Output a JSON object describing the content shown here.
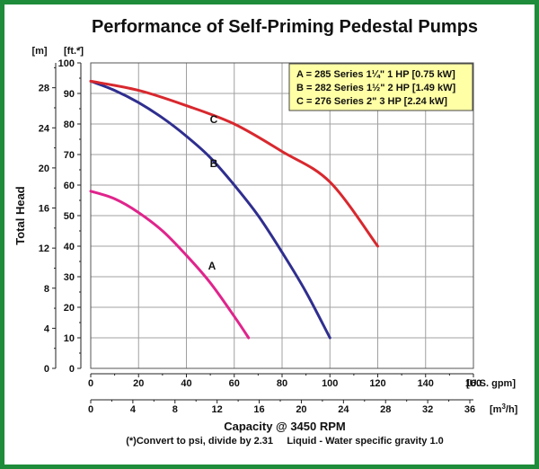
{
  "chart_data": {
    "type": "line",
    "title": "Performance of Self-Priming Pedestal Pumps",
    "xlabel": "Capacity @ 3450 RPM",
    "ylabel": "Total Head",
    "x_unit_gpm": "[U.S. gpm]",
    "x_unit_m3h": "[m3/h]",
    "y_unit_ft": "[ft.*]",
    "y_unit_m": "[m]",
    "footnote": "(*)Convert to psi, divide by 2.31     Liquid - Water specific gravity 1.0",
    "xlim": [
      0,
      160
    ],
    "ylim": [
      0,
      100
    ],
    "grid": true,
    "legend_position": "top-right",
    "x_ticks_gpm": [
      0,
      20,
      40,
      60,
      80,
      100,
      120,
      140,
      160
    ],
    "x_ticks_m3h": [
      0,
      4,
      8,
      12,
      16,
      20,
      24,
      28,
      32,
      36
    ],
    "y_ticks_ft": [
      0,
      10,
      20,
      30,
      40,
      50,
      60,
      70,
      80,
      90,
      100
    ],
    "y_ticks_m": [
      0,
      4,
      8,
      12,
      16,
      20,
      24,
      28
    ],
    "legend": [
      "A = 285 Series 1¼\" 1 HP [0.75 kW]",
      "B = 282 Series 1½\" 2 HP [1.49 kW]",
      "C = 276 Series 2\" 3 HP [2.24 kW]"
    ],
    "series": [
      {
        "name": "A",
        "color": "#e0248c",
        "x": [
          0,
          10,
          20,
          30,
          40,
          50,
          60,
          66
        ],
        "y": [
          58,
          55.5,
          51,
          45,
          37,
          28,
          17,
          10
        ]
      },
      {
        "name": "B",
        "color": "#2f2e8f",
        "x": [
          0,
          10,
          20,
          30,
          40,
          50,
          60,
          70,
          80,
          90,
          100
        ],
        "y": [
          94,
          91,
          87,
          82,
          76,
          69,
          60,
          50,
          38,
          25,
          10
        ]
      },
      {
        "name": "C",
        "color": "#d8282e",
        "x": [
          0,
          20,
          40,
          60,
          80,
          100,
          120
        ],
        "y": [
          94,
          91,
          86,
          80,
          71,
          61,
          40
        ]
      }
    ]
  },
  "colors": {
    "frame": "#1e8c3a",
    "legend_bg": "#ffffa6",
    "grid": "#a0a0a0"
  }
}
